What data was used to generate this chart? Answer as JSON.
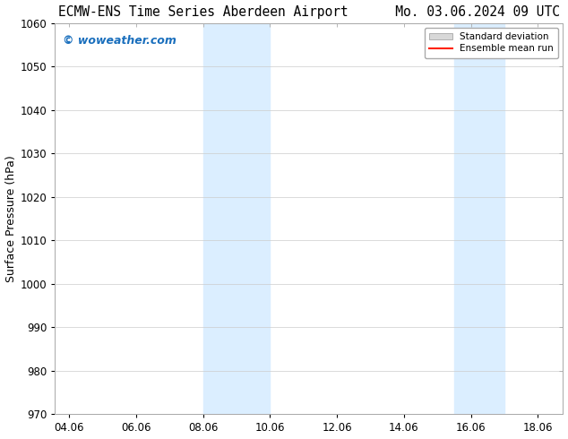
{
  "title": "ECMW-ENS Time Series Aberdeen Airport      Mo. 03.06.2024 09 UTC",
  "ylabel": "Surface Pressure (hPa)",
  "ylim": [
    970,
    1060
  ],
  "yticks": [
    970,
    980,
    990,
    1000,
    1010,
    1020,
    1030,
    1040,
    1050,
    1060
  ],
  "xlim_start": 3.58,
  "xlim_end": 18.75,
  "xtick_labels": [
    "04.06",
    "06.06",
    "08.06",
    "10.06",
    "12.06",
    "14.06",
    "16.06",
    "18.06"
  ],
  "xtick_positions": [
    4,
    6,
    8,
    10,
    12,
    14,
    16,
    18
  ],
  "shaded_bands": [
    {
      "xmin": 8.0,
      "xmax": 10.0
    },
    {
      "xmin": 15.5,
      "xmax": 17.0
    }
  ],
  "shade_color": "#dbeeff",
  "watermark_text": "© woweather.com",
  "watermark_color": "#1a6fbd",
  "legend_std_label": "Standard deviation",
  "legend_mean_label": "Ensemble mean run",
  "legend_std_color": "#d8d8d8",
  "legend_mean_color": "#ff2200",
  "bg_color": "#ffffff",
  "grid_color": "#cccccc",
  "title_fontsize": 10.5,
  "tick_fontsize": 8.5,
  "ylabel_fontsize": 9,
  "watermark_fontsize": 9
}
